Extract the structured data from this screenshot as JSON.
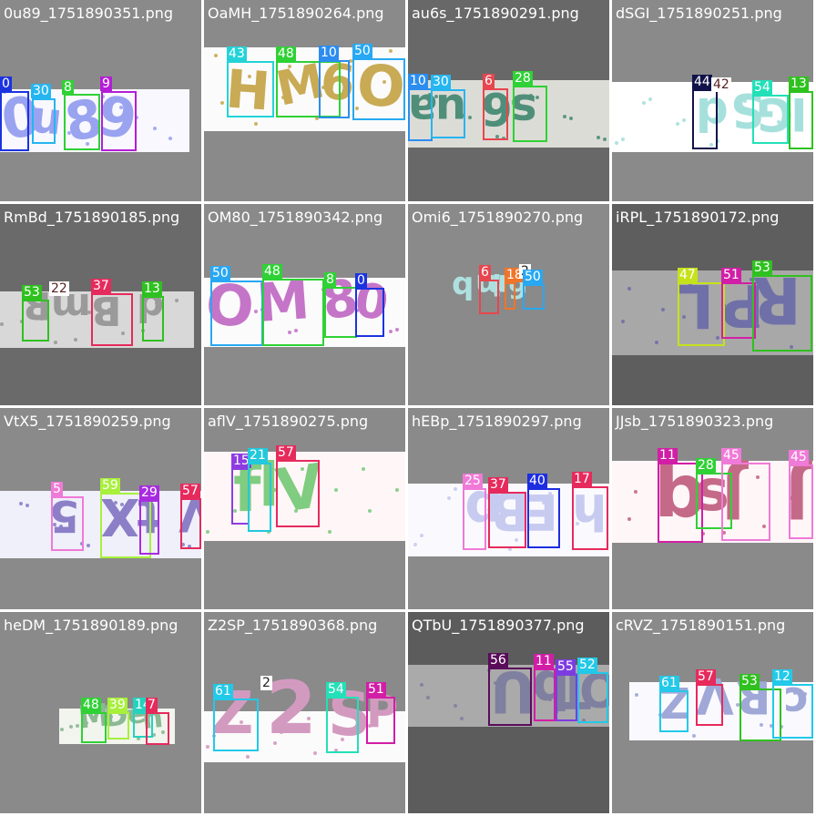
{
  "tiles": [
    {
      "filename": "0u89_1751890351.png",
      "bg": "#8a8a8a",
      "strip_color": "#f8f8fe",
      "chars": [
        "0",
        "u",
        "8",
        "9"
      ],
      "ink": "#9aa3f0",
      "detections": [
        {
          "label": "0",
          "color": "#1c33e0",
          "text_color": "#ffffff"
        },
        {
          "label": "30",
          "color": "#25b6f0",
          "text_color": "#ffffff"
        },
        {
          "label": "8",
          "color": "#2fd135",
          "text_color": "#ffffff"
        },
        {
          "label": "9",
          "color": "#b31ed6",
          "text_color": "#ffffff"
        }
      ]
    },
    {
      "filename": "OaMH_1751890264.png",
      "bg": "#8a8a8a",
      "strip_color": "#fbfbfb",
      "chars": [
        "H",
        "M",
        "6",
        "O"
      ],
      "ink": "#c9aa55",
      "detections": [
        {
          "label": "43",
          "color": "#23d3d8",
          "text_color": "#ffffff"
        },
        {
          "label": "48",
          "color": "#2fd135",
          "text_color": "#ffffff"
        },
        {
          "label": "10",
          "color": "#2b8df0",
          "text_color": "#ffffff"
        },
        {
          "label": "50",
          "color": "#28a8f2",
          "text_color": "#ffffff"
        }
      ]
    },
    {
      "filename": "au6s_1751890291.png",
      "bg": "#686868",
      "strip_color": "#dcdcd6",
      "chars": [
        "a",
        "u",
        "6",
        "s"
      ],
      "ink": "#4f8f7a",
      "detections": [
        {
          "label": "10",
          "color": "#2b8df0",
          "text_color": "#ffffff"
        },
        {
          "label": "30",
          "color": "#25b6f0",
          "text_color": "#ffffff"
        },
        {
          "label": "6",
          "color": "#e8454f",
          "text_color": "#ffffff"
        },
        {
          "label": "28",
          "color": "#2fd135",
          "text_color": "#ffffff"
        }
      ]
    },
    {
      "filename": "dSGI_1751890251.png",
      "bg": "#8a8a8a",
      "strip_color": "#ffffff",
      "chars": [
        "d",
        "S",
        "G",
        "I"
      ],
      "ink": "#a6e0dc",
      "detections": [
        {
          "label": "44",
          "color": "#12124a",
          "text_color": "#ffffff"
        },
        {
          "label": "42",
          "color": "#ffffff",
          "text_color": "#5a1f1f"
        },
        {
          "label": "54",
          "color": "#23e0b8",
          "text_color": "#ffffff"
        },
        {
          "label": "13",
          "color": "#2fc11f",
          "text_color": "#ffffff"
        }
      ]
    },
    {
      "filename": "RmBd_1751890185.png",
      "bg": "#6a6a6a",
      "strip_color": "#d8d8d8",
      "chars": [
        "R",
        "m",
        "B",
        "d"
      ],
      "ink": "#9a9a9a",
      "detections": [
        {
          "label": "53",
          "color": "#2fc11f",
          "text_color": "#ffffff"
        },
        {
          "label": "22",
          "color": "#ffffff",
          "text_color": "#5a1f1f"
        },
        {
          "label": "37",
          "color": "#e62a5c",
          "text_color": "#ffffff"
        },
        {
          "label": "13",
          "color": "#2fc11f",
          "text_color": "#ffffff"
        }
      ]
    },
    {
      "filename": "OM80_1751890342.png",
      "bg": "#8a8a8a",
      "strip_color": "#fbfbfb",
      "chars": [
        "O",
        "M",
        "8",
        "0"
      ],
      "ink": "#c575c8",
      "detections": [
        {
          "label": "50",
          "color": "#28a8f2",
          "text_color": "#ffffff"
        },
        {
          "label": "48",
          "color": "#2fd135",
          "text_color": "#ffffff"
        },
        {
          "label": "8",
          "color": "#2fd135",
          "text_color": "#ffffff"
        },
        {
          "label": "0",
          "color": "#1c33e0",
          "text_color": "#ffffff"
        }
      ]
    },
    {
      "filename": "Omi6_1751890270.png",
      "bg": "#8a8a8a",
      "strip_color": "#fbfbfb",
      "chars": [
        "b",
        "m",
        "i",
        "6"
      ],
      "ink": "#aee0e0",
      "detections": [
        {
          "label": "6",
          "color": "#e8454f",
          "text_color": "#ffffff"
        },
        {
          "label": "18",
          "color": "#f0752a",
          "text_color": "#ffffff"
        },
        {
          "label": "2",
          "color": "#ffffff",
          "text_color": "#222222"
        },
        {
          "label": "50",
          "color": "#28a8f2",
          "text_color": "#ffffff"
        }
      ]
    },
    {
      "filename": "iRPL_1751890172.png",
      "bg": "#5e5e5e",
      "strip_color": "#a8a8a8",
      "chars": [
        "L",
        "P",
        "R"
      ],
      "ink": "#7070a8",
      "detections": [
        {
          "label": "47",
          "color": "#c6e21c",
          "text_color": "#ffffff"
        },
        {
          "label": "51",
          "color": "#d21ea6",
          "text_color": "#ffffff"
        },
        {
          "label": "53",
          "color": "#2fc11f",
          "text_color": "#ffffff"
        }
      ]
    },
    {
      "filename": "VtX5_1751890259.png",
      "bg": "#8a8a8a",
      "strip_color": "#f0f0fa",
      "chars": [
        "5",
        "X",
        "t",
        "V"
      ],
      "ink": "#8c7fc8",
      "detections": [
        {
          "label": "5",
          "color": "#f07ad7",
          "text_color": "#ffffff"
        },
        {
          "label": "59",
          "color": "#a8f03c",
          "text_color": "#ffffff"
        },
        {
          "label": "29",
          "color": "#a92be0",
          "text_color": "#ffffff"
        },
        {
          "label": "57",
          "color": "#e62a5c",
          "text_color": "#ffffff"
        }
      ]
    },
    {
      "filename": "aflV_1751890275.png",
      "bg": "#8a8a8a",
      "strip_color": "#fff6f8",
      "chars": [
        "f",
        "l",
        "V"
      ],
      "ink": "#80cc80",
      "detections": [
        {
          "label": "15",
          "color": "#8e3ce0",
          "text_color": "#ffffff"
        },
        {
          "label": "21",
          "color": "#22c9dc",
          "text_color": "#ffffff"
        },
        {
          "label": "57",
          "color": "#e62a5c",
          "text_color": "#ffffff"
        }
      ]
    },
    {
      "filename": "hEBp_1751890297.png",
      "bg": "#8a8a8a",
      "strip_color": "#fafafe",
      "chars": [
        "p",
        "B",
        "E",
        "h"
      ],
      "ink": "#c8cbf0",
      "detections": [
        {
          "label": "25",
          "color": "#f07ad7",
          "text_color": "#ffffff"
        },
        {
          "label": "37",
          "color": "#e62a5c",
          "text_color": "#ffffff"
        },
        {
          "label": "40",
          "color": "#1c2ee0",
          "text_color": "#ffffff"
        },
        {
          "label": "17",
          "color": "#e62a5c",
          "text_color": "#ffffff"
        }
      ]
    },
    {
      "filename": "JJsb_1751890323.png",
      "bg": "#8a8a8a",
      "strip_color": "#fff6f8",
      "chars": [
        "b",
        "s",
        "J",
        "J"
      ],
      "ink": "#c46a88",
      "detections": [
        {
          "label": "11",
          "color": "#d21ea6",
          "text_color": "#ffffff"
        },
        {
          "label": "28",
          "color": "#2fd135",
          "text_color": "#ffffff"
        },
        {
          "label": "45",
          "color": "#f07ad7",
          "text_color": "#ffffff"
        },
        {
          "label": "45",
          "color": "#f07ad7",
          "text_color": "#ffffff"
        }
      ]
    },
    {
      "filename": "heDM_1751890189.png",
      "bg": "#8a8a8a",
      "strip_color": "#f2f4ee",
      "chars": [
        "M",
        "D",
        "e",
        "h"
      ],
      "ink": "#8cb894",
      "detections": [
        {
          "label": "48",
          "color": "#2fd135",
          "text_color": "#ffffff"
        },
        {
          "label": "39",
          "color": "#a8f03c",
          "text_color": "#ffffff"
        },
        {
          "label": "14",
          "color": "#23d3c0",
          "text_color": "#ffffff"
        },
        {
          "label": "7",
          "color": "#e62a5c",
          "text_color": "#ffffff"
        }
      ]
    },
    {
      "filename": "Z2SP_1751890368.png",
      "bg": "#8a8a8a",
      "strip_color": "#fbfbfb",
      "chars": [
        "Z",
        "2",
        "S",
        "P"
      ],
      "ink": "#d39ac0",
      "detections": [
        {
          "label": "61",
          "color": "#22c9e8",
          "text_color": "#ffffff"
        },
        {
          "label": "2",
          "color": "#ffffff",
          "text_color": "#222222"
        },
        {
          "label": "54",
          "color": "#23e0b8",
          "text_color": "#ffffff"
        },
        {
          "label": "51",
          "color": "#d21ea6",
          "text_color": "#ffffff"
        }
      ]
    },
    {
      "filename": "QTbU_1751890377.png",
      "bg": "#5c5c5c",
      "strip_color": "#aaaaaa",
      "chars": [
        "U",
        "b",
        "T",
        "Q"
      ],
      "ink": "#7f7f9f",
      "detections": [
        {
          "label": "56",
          "color": "#5a0c5a",
          "text_color": "#ffffff"
        },
        {
          "label": "11",
          "color": "#d21ea6",
          "text_color": "#ffffff"
        },
        {
          "label": "55",
          "color": "#7d3ce0",
          "text_color": "#ffffff"
        },
        {
          "label": "52",
          "color": "#22c9e8",
          "text_color": "#ffffff"
        }
      ]
    },
    {
      "filename": "cRVZ_1751890151.png",
      "bg": "#8a8a8a",
      "strip_color": "#fafafe",
      "chars": [
        "Z",
        "V",
        "R",
        "c"
      ],
      "ink": "#a0a8d8",
      "detections": [
        {
          "label": "61",
          "color": "#22c9e8",
          "text_color": "#ffffff"
        },
        {
          "label": "57",
          "color": "#e62a5c",
          "text_color": "#ffffff"
        },
        {
          "label": "53",
          "color": "#2fc11f",
          "text_color": "#ffffff"
        },
        {
          "label": "12",
          "color": "#22c9e8",
          "text_color": "#ffffff"
        }
      ]
    }
  ]
}
